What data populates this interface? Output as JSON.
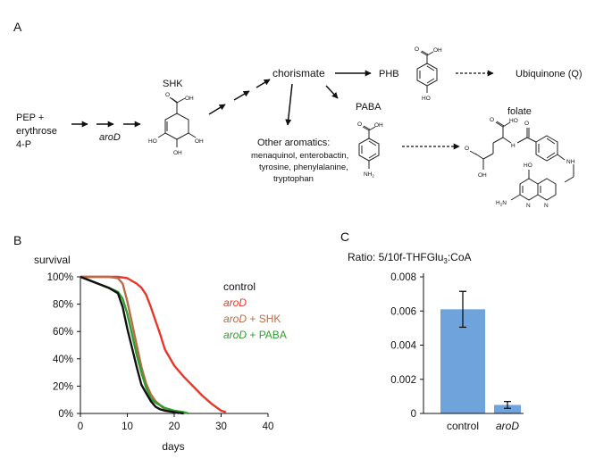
{
  "panels": {
    "a": "A",
    "b": "B",
    "c": "C"
  },
  "pathway": {
    "start": [
      "PEP +",
      "erythrose",
      "4-P"
    ],
    "arod": "aroD",
    "shk": "SHK",
    "chorismate": "chorismate",
    "phb": "PHB",
    "ubiquinone": "Ubiquinone (Q)",
    "paba": "PABA",
    "folate": "folate",
    "other_title": "Other aromatics:",
    "other_lines": [
      "menaquinol, enterobactin,",
      "tyrosine, phenylalanine,",
      "tryptophan"
    ],
    "atoms": {
      "o": "O",
      "oh": "OH",
      "ho": "HO",
      "nh2": "NH",
      "sub2": "2",
      "nh": "NH",
      "hn": "H",
      "n": "N",
      "h2n": "H",
      "n_tail": "N"
    }
  },
  "colors": {
    "control": "#111111",
    "arod": "#e8372a",
    "shk": "#b86b45",
    "paba": "#2e9e2e",
    "bar": "#6fa3dc"
  },
  "chart_data": [
    {
      "type": "line",
      "title": "survival",
      "xlabel": "days",
      "ylabel": "",
      "xlim": [
        0,
        40
      ],
      "ylim": [
        0,
        100
      ],
      "xticks": [
        "0",
        "10",
        "20",
        "30",
        "40"
      ],
      "yticks": [
        "0%",
        "20%",
        "40%",
        "60%",
        "80%",
        "100%"
      ],
      "legend_position": "right",
      "series": [
        {
          "name": "control",
          "color_key": "control",
          "x": [
            0,
            3,
            6,
            8,
            9,
            10,
            11,
            12,
            13,
            14,
            15,
            16,
            17,
            18,
            20,
            22
          ],
          "y": [
            100,
            96,
            92,
            88,
            78,
            62,
            48,
            34,
            21,
            15,
            9,
            5,
            3,
            2,
            1,
            0
          ]
        },
        {
          "name": "aroD",
          "color_key": "arod",
          "x": [
            0,
            3,
            6,
            8,
            10,
            11,
            12,
            13,
            14,
            15,
            16,
            17,
            18,
            20,
            22,
            24,
            26,
            28,
            30,
            31
          ],
          "y": [
            100,
            100,
            100,
            100,
            99,
            97,
            95,
            92,
            87,
            78,
            68,
            58,
            47,
            35,
            27,
            20,
            13,
            7,
            2,
            1
          ]
        },
        {
          "name": "aroD + SHK",
          "color_key": "shk",
          "x": [
            0,
            3,
            6,
            8,
            9,
            10,
            11,
            12,
            13,
            14,
            15,
            16,
            17,
            18,
            19,
            20,
            21
          ],
          "y": [
            100,
            100,
            100,
            99,
            95,
            82,
            66,
            50,
            34,
            22,
            14,
            9,
            6,
            3,
            2,
            1,
            0
          ]
        },
        {
          "name": "aroD + PABA",
          "color_key": "paba",
          "x": [
            0,
            3,
            6,
            8,
            9,
            10,
            11,
            12,
            13,
            14,
            15,
            16,
            17,
            18,
            19,
            20,
            22,
            23
          ],
          "y": [
            100,
            96,
            92,
            89,
            84,
            73,
            58,
            43,
            30,
            19,
            11,
            8,
            6,
            4,
            3,
            2,
            1,
            0
          ]
        }
      ]
    },
    {
      "type": "bar",
      "title": "Ratio: 5/10f-THFGlu",
      "title_sub": "3",
      "title_tail": ":CoA",
      "xlabel": "",
      "ylabel": "",
      "ylim": [
        0,
        0.008
      ],
      "yticks": [
        "0",
        "0.002",
        "0.004",
        "0.006",
        "0.008"
      ],
      "categories": [
        "control",
        "aroD"
      ],
      "values": [
        0.0061,
        0.0005
      ],
      "errors": [
        0.00105,
        0.0002
      ]
    }
  ]
}
